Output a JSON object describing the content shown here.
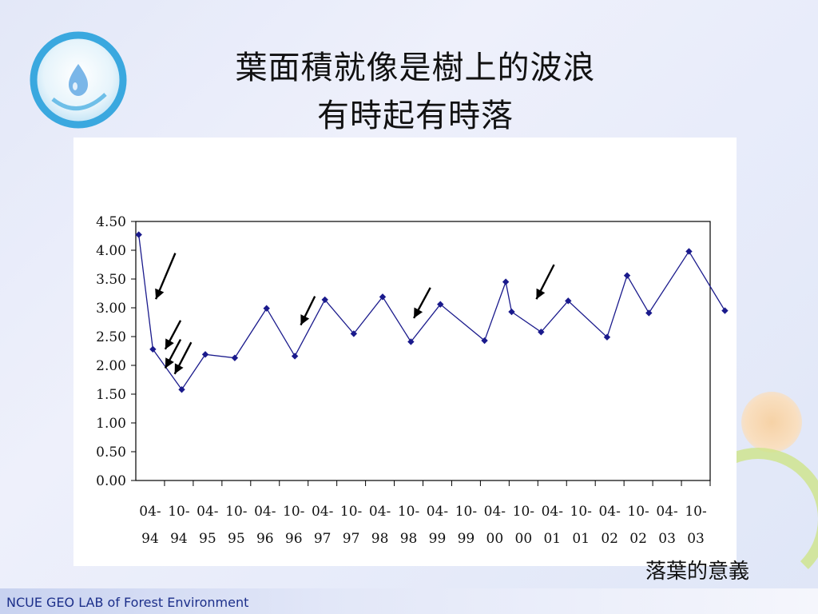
{
  "slide": {
    "title_line_1": "葉面積就像是樹上的波浪",
    "title_line_2": "有時起有時落",
    "caption": "落葉的意義",
    "footer": "NCUE GEO LAB of Forest Environment"
  },
  "logo": {
    "icon": "water-drop-icon",
    "ring_color": "#3aa8df",
    "drop_color": "#7ab6e8"
  },
  "colors": {
    "series": "#1a1a8c",
    "arrow": "#000000",
    "axis": "#000000"
  },
  "chart_data": {
    "type": "line",
    "title": "",
    "xlabel": "",
    "ylabel": "",
    "ylim": [
      0,
      4.5
    ],
    "yticks": [
      "0.00",
      "0.50",
      "1.00",
      "1.50",
      "2.00",
      "2.50",
      "3.00",
      "3.50",
      "4.00",
      "4.50"
    ],
    "xtick_labels": [
      [
        "04-",
        "94"
      ],
      [
        "10-",
        "94"
      ],
      [
        "04-",
        "95"
      ],
      [
        "10-",
        "95"
      ],
      [
        "04-",
        "96"
      ],
      [
        "10-",
        "96"
      ],
      [
        "04-",
        "97"
      ],
      [
        "10-",
        "97"
      ],
      [
        "04-",
        "98"
      ],
      [
        "10-",
        "98"
      ],
      [
        "04-",
        "99"
      ],
      [
        "10-",
        "99"
      ],
      [
        "04-",
        "00"
      ],
      [
        "10-",
        "00"
      ],
      [
        "04-",
        "01"
      ],
      [
        "10-",
        "01"
      ],
      [
        "04-",
        "02"
      ],
      [
        "10-",
        "02"
      ],
      [
        "04-",
        "03"
      ],
      [
        "10-",
        "03"
      ]
    ],
    "xlim": [
      1994.0,
      2003.75
    ],
    "grid": false,
    "legend": "none",
    "series": [
      {
        "points": [
          {
            "x": 1994.05,
            "y": 4.27
          },
          {
            "x": 1994.29,
            "y": 2.28
          },
          {
            "x": 1994.78,
            "y": 1.58
          },
          {
            "x": 1995.18,
            "y": 2.19
          },
          {
            "x": 1995.68,
            "y": 2.13
          },
          {
            "x": 1996.22,
            "y": 2.99
          },
          {
            "x": 1996.7,
            "y": 2.16
          },
          {
            "x": 1997.21,
            "y": 3.14
          },
          {
            "x": 1997.7,
            "y": 2.55
          },
          {
            "x": 1998.19,
            "y": 3.19
          },
          {
            "x": 1998.67,
            "y": 2.41
          },
          {
            "x": 1999.17,
            "y": 3.06
          },
          {
            "x": 1999.92,
            "y": 2.43
          },
          {
            "x": 2000.28,
            "y": 3.45
          },
          {
            "x": 2000.38,
            "y": 2.93
          },
          {
            "x": 2000.88,
            "y": 2.58
          },
          {
            "x": 2001.34,
            "y": 3.12
          },
          {
            "x": 2002.0,
            "y": 2.49
          },
          {
            "x": 2002.34,
            "y": 3.56
          },
          {
            "x": 2002.71,
            "y": 2.91
          },
          {
            "x": 2003.39,
            "y": 3.98
          },
          {
            "x": 2004.0,
            "y": 2.95
          }
        ]
      }
    ],
    "annotations": [
      {
        "type": "arrow",
        "tip_x": 1994.34,
        "tip_y": 3.15,
        "tail_x": 1994.67,
        "tail_y": 3.95
      },
      {
        "type": "arrow",
        "tip_x": 1994.5,
        "tip_y": 2.28,
        "tail_x": 1994.76,
        "tail_y": 2.78
      },
      {
        "type": "arrow",
        "tip_x": 1994.5,
        "tip_y": 1.95,
        "tail_x": 1994.76,
        "tail_y": 2.45
      },
      {
        "type": "arrow",
        "tip_x": 1994.66,
        "tip_y": 1.85,
        "tail_x": 1994.94,
        "tail_y": 2.4
      },
      {
        "type": "arrow",
        "tip_x": 1996.8,
        "tip_y": 2.7,
        "tail_x": 1997.04,
        "tail_y": 3.2
      },
      {
        "type": "arrow",
        "tip_x": 1998.72,
        "tip_y": 2.82,
        "tail_x": 1999.0,
        "tail_y": 3.35
      },
      {
        "type": "arrow",
        "tip_x": 2000.8,
        "tip_y": 3.15,
        "tail_x": 2001.1,
        "tail_y": 3.75
      }
    ]
  }
}
